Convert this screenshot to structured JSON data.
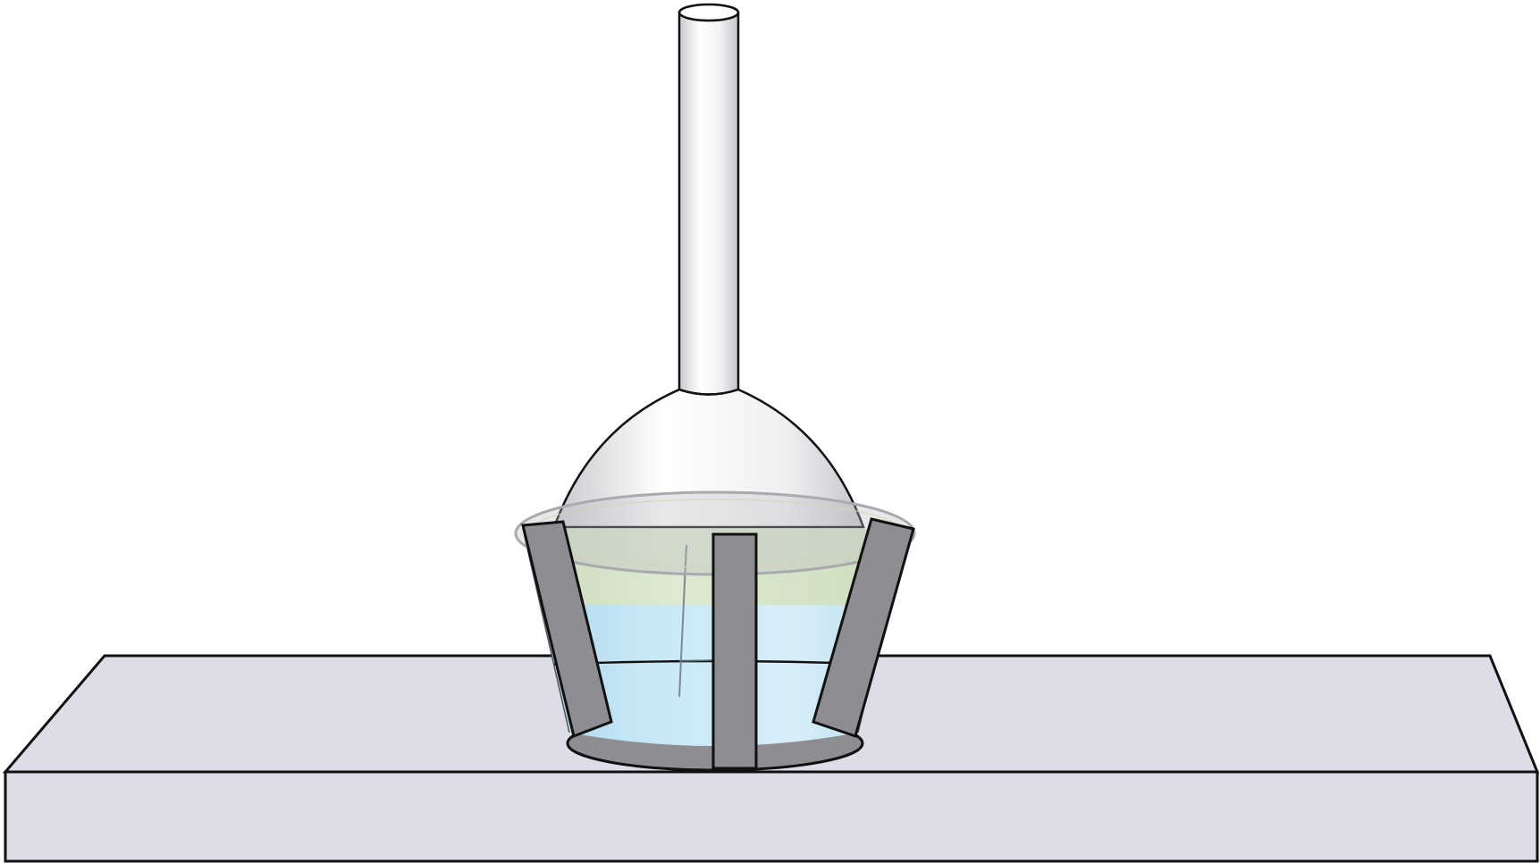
{
  "diagram": {
    "type": "illustration",
    "objects": [
      "bench-top",
      "flask-with-long-neck",
      "cork-ring-stand",
      "liquid-in-flask"
    ],
    "colors": {
      "bench_top": "#dcdde6",
      "bench_front": "#dcdde6",
      "outline": "#111111",
      "stand_band": "#8d8d92",
      "stand_band_dark": "#6f7075",
      "glass_highlight": "#ffffff",
      "glass_shade": "#c9cace",
      "liquid_top": "#d6e4c4",
      "liquid_middle": "#bfe2f2",
      "liquid_bottom": "#b6dcee",
      "rim": "#bdbdc2"
    }
  }
}
